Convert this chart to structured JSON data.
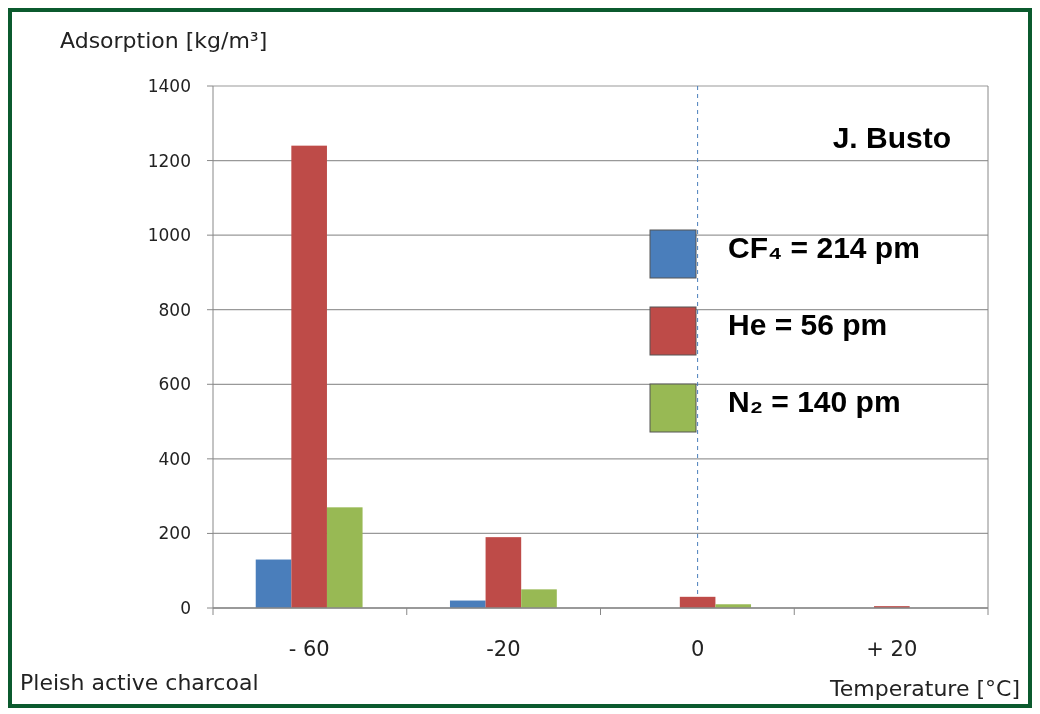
{
  "chart_data": {
    "type": "bar",
    "xlabel": "Temperature [°C]",
    "ylabel": "Adsorption [kg/m³]",
    "categories": [
      "- 60",
      "-20",
      "0",
      "+ 20"
    ],
    "series": [
      {
        "name": "CF₄ = 214 pm",
        "color": "#4a7ebb",
        "values": [
          130,
          20,
          null,
          null
        ]
      },
      {
        "name": "He = 56 pm",
        "color": "#be4b48",
        "values": [
          1240,
          190,
          30,
          5
        ]
      },
      {
        "name": "N₂ = 140 pm",
        "color": "#98b954",
        "values": [
          270,
          50,
          10,
          null
        ]
      }
    ],
    "ylim": [
      0,
      1400
    ],
    "yticks": [
      0,
      200,
      400,
      600,
      800,
      1000,
      1200,
      1400
    ],
    "grid": "y",
    "legend": "right",
    "ref_lines": [
      {
        "axis": "x",
        "value": "0",
        "color": "#4a7ebb",
        "line_style": "dashed"
      }
    ],
    "annotations": [
      "J. Busto",
      "Pleish active charcoal"
    ]
  }
}
